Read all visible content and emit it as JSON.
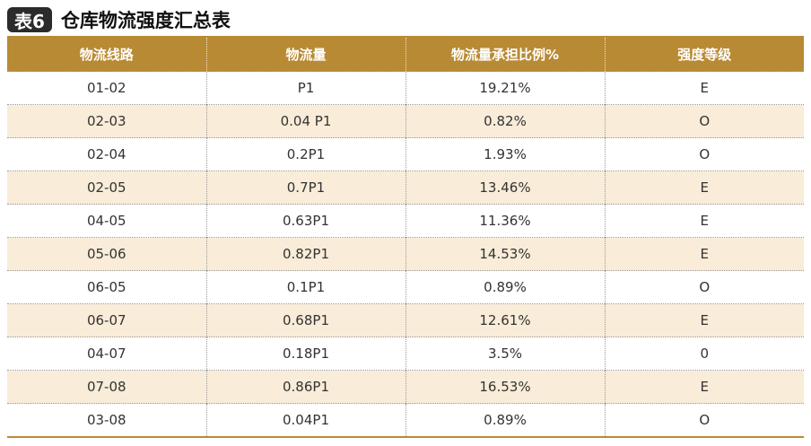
{
  "title": {
    "badge": "表6",
    "text": "仓库物流强度汇总表"
  },
  "table": {
    "headers": [
      "物流线路",
      "物流量",
      "物流量承担比例%",
      "强度等级"
    ],
    "rows": [
      [
        "01-02",
        "P1",
        "19.21%",
        "E"
      ],
      [
        "02-03",
        "0.04 P1",
        "0.82%",
        "O"
      ],
      [
        "02-04",
        "0.2P1",
        "1.93%",
        "O"
      ],
      [
        "02-05",
        "0.7P1",
        "13.46%",
        "E"
      ],
      [
        "04-05",
        "0.63P1",
        "11.36%",
        "E"
      ],
      [
        "05-06",
        "0.82P1",
        "14.53%",
        "E"
      ],
      [
        "06-05",
        "0.1P1",
        "0.89%",
        "O"
      ],
      [
        "06-07",
        "0.68P1",
        "12.61%",
        "E"
      ],
      [
        "04-07",
        "0.18P1",
        "3.5%",
        "0"
      ],
      [
        "07-08",
        "0.86P1",
        "16.53%",
        "E"
      ],
      [
        "03-08",
        "0.04P1",
        "0.89%",
        "O"
      ]
    ]
  },
  "colors": {
    "header_bg": "#b98a34",
    "stripe_bg": "#f9ecd8",
    "badge_bg": "#2b2b2b"
  }
}
